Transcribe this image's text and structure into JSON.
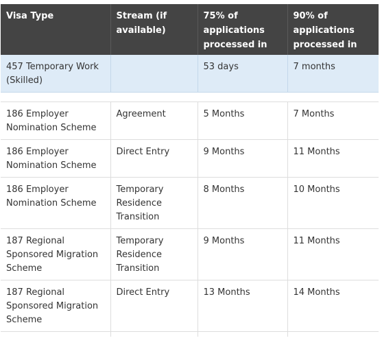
{
  "table": {
    "headers": [
      "Visa Type",
      "Stream (if available)",
      "75% of applications processed in",
      "90% of applications processed in"
    ],
    "highlight_row": [
      "457 Temporary Work (Skilled)",
      "",
      "53 days",
      "7 months"
    ],
    "rows": [
      [
        "186 Employer Nomination Scheme",
        "Agreement",
        "5 Months",
        "7 Months"
      ],
      [
        "186 Employer Nomination Scheme",
        "Direct Entry",
        "9 Months",
        "11 Months"
      ],
      [
        "186 Employer Nomination Scheme",
        "Temporary Residence Transition",
        "8 Months",
        "10 Months"
      ],
      [
        "187 Regional Sponsored Migration Scheme",
        "Temporary Residence Transition",
        "9 Months",
        "11 Months"
      ],
      [
        "187 Regional Sponsored Migration Scheme",
        "Direct Entry",
        "13 Months",
        "14 Months"
      ]
    ]
  },
  "colors": {
    "header_bg": "#444444",
    "highlight_bg": "#deebf7"
  }
}
